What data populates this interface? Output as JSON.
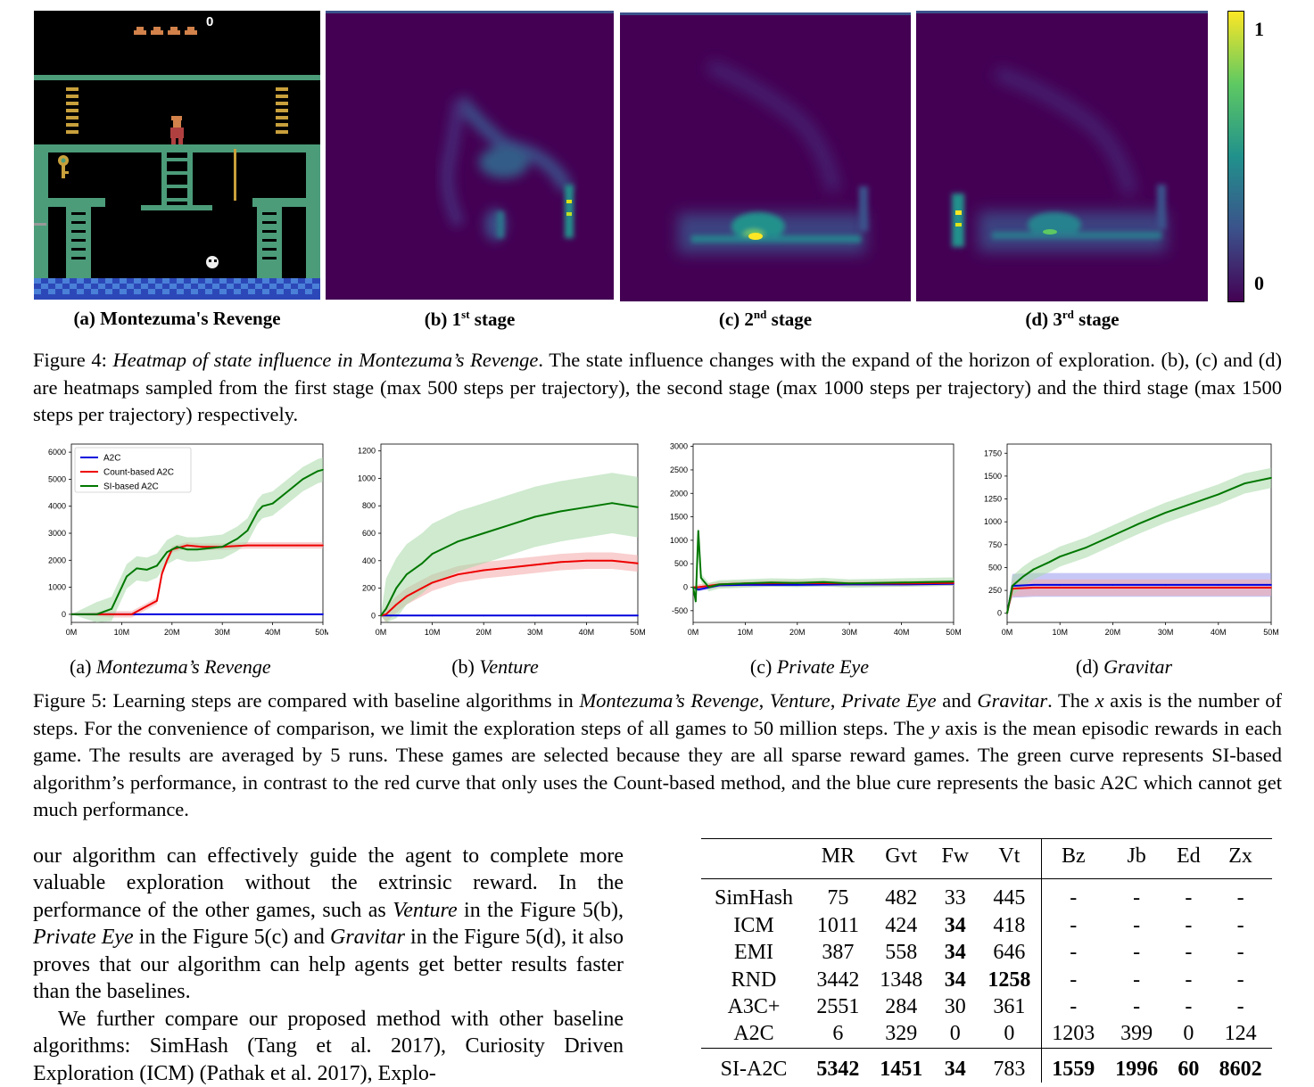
{
  "figure4": {
    "panels": [
      {
        "label": "(a) Montezuma's Revenge"
      },
      {
        "label_prefix": "(b) 1",
        "label_sup": "st",
        "label_suffix": " stage"
      },
      {
        "label_prefix": "(c) 2",
        "label_sup": "nd",
        "label_suffix": " stage"
      },
      {
        "label_prefix": "(d) 3",
        "label_sup": "rd",
        "label_suffix": " stage"
      }
    ],
    "game_score": "0",
    "colorbar": {
      "max_label": "1",
      "min_label": "0",
      "colors": [
        "#440154",
        "#3b528b",
        "#21918c",
        "#5ec962",
        "#fde725"
      ]
    },
    "caption": {
      "prefix": "Figure 4: ",
      "italic": "Heatmap of state influence in Montezuma’s Revenge",
      "rest": ". The state influence changes with the expand of the horizon of exploration. (b), (c) and (d) are heatmaps sampled from the first stage (max 500 steps per trajectory), the second stage (max 1000 steps per trajectory) and the third stage (max 1500 steps per trajectory) respectively."
    }
  },
  "chart_data": [
    {
      "type": "line",
      "title": "",
      "x_ticks": [
        "0M",
        "10M",
        "20M",
        "30M",
        "40M",
        "50M"
      ],
      "xlim": [
        0,
        50
      ],
      "ylim": [
        -300,
        6300
      ],
      "y_ticks": [
        0,
        1000,
        2000,
        3000,
        4000,
        5000,
        6000
      ],
      "legend": {
        "placement": "top-left",
        "entries": [
          "A2C",
          "Count-based A2C",
          "SI-based A2C"
        ]
      },
      "series": [
        {
          "name": "A2C",
          "color": "#0000dd",
          "x": [
            0,
            10,
            20,
            30,
            40,
            50
          ],
          "y": [
            0,
            0,
            0,
            0,
            0,
            0
          ]
        },
        {
          "name": "Count-based A2C",
          "color": "#ee0000",
          "x": [
            0,
            8,
            12,
            14,
            15,
            17,
            18,
            19,
            20,
            23,
            26,
            30,
            35,
            40,
            45,
            50
          ],
          "y": [
            0,
            0,
            0,
            200,
            300,
            500,
            1500,
            2000,
            2400,
            2550,
            2500,
            2500,
            2550,
            2550,
            2550,
            2550
          ]
        },
        {
          "name": "SI-based A2C",
          "color": "#007700",
          "x": [
            0,
            5,
            8,
            10,
            11,
            13,
            15,
            17,
            19,
            21,
            23,
            25,
            30,
            33,
            35,
            37,
            38,
            40,
            42,
            44,
            46,
            48,
            49,
            50
          ],
          "y": [
            0,
            0,
            200,
            1000,
            1400,
            1700,
            1650,
            1800,
            2300,
            2500,
            2400,
            2400,
            2500,
            2800,
            3100,
            3800,
            4000,
            4100,
            4400,
            4700,
            5000,
            5200,
            5300,
            5350
          ]
        }
      ]
    },
    {
      "type": "line",
      "title": "",
      "x_ticks": [
        "0M",
        "10M",
        "20M",
        "30M",
        "40M",
        "50M"
      ],
      "xlim": [
        0,
        50
      ],
      "ylim": [
        -50,
        1250
      ],
      "y_ticks": [
        0,
        200,
        400,
        600,
        800,
        1000,
        1200
      ],
      "series": [
        {
          "name": "A2C",
          "color": "#0000dd",
          "x": [
            0,
            10,
            20,
            30,
            40,
            50
          ],
          "y": [
            0,
            0,
            0,
            0,
            0,
            0
          ]
        },
        {
          "name": "Count-based A2C",
          "color": "#ee0000",
          "x": [
            0,
            1,
            3,
            5,
            8,
            10,
            15,
            20,
            25,
            30,
            35,
            40,
            45,
            50
          ],
          "y": [
            0,
            10,
            80,
            140,
            200,
            240,
            300,
            330,
            350,
            370,
            390,
            400,
            400,
            380
          ]
        },
        {
          "name": "SI-based A2C",
          "color": "#007700",
          "x": [
            0,
            1,
            3,
            5,
            8,
            10,
            15,
            20,
            25,
            30,
            35,
            40,
            45,
            50
          ],
          "y": [
            0,
            50,
            200,
            300,
            380,
            450,
            540,
            600,
            660,
            720,
            760,
            790,
            820,
            790
          ]
        }
      ]
    },
    {
      "type": "line",
      "title": "",
      "x_ticks": [
        "0M",
        "10M",
        "20M",
        "30M",
        "40M",
        "50M"
      ],
      "xlim": [
        0,
        50
      ],
      "ylim": [
        -750,
        3050
      ],
      "y_ticks": [
        -500,
        0,
        500,
        1000,
        1500,
        2000,
        2500,
        3000
      ],
      "series": [
        {
          "name": "A2C",
          "color": "#0000dd",
          "x": [
            0,
            1,
            5,
            10,
            20,
            30,
            40,
            50
          ],
          "y": [
            0,
            -50,
            40,
            50,
            50,
            60,
            60,
            70
          ]
        },
        {
          "name": "Count-based A2C",
          "color": "#ee0000",
          "x": [
            0,
            1,
            5,
            10,
            20,
            30,
            40,
            50
          ],
          "y": [
            0,
            0,
            60,
            80,
            90,
            80,
            80,
            90
          ]
        },
        {
          "name": "SI-based A2C",
          "color": "#007700",
          "x": [
            0,
            0.5,
            1,
            1.5,
            3,
            5,
            10,
            15,
            20,
            25,
            30,
            35,
            40,
            45,
            50
          ],
          "y": [
            0,
            -300,
            1200,
            200,
            0,
            60,
            80,
            100,
            90,
            110,
            80,
            90,
            100,
            110,
            120
          ]
        }
      ]
    },
    {
      "type": "line",
      "title": "",
      "x_ticks": [
        "0M",
        "10M",
        "20M",
        "30M",
        "40M",
        "50M"
      ],
      "xlim": [
        0,
        50
      ],
      "ylim": [
        -100,
        1850
      ],
      "y_ticks": [
        0,
        250,
        500,
        750,
        1000,
        1250,
        1500,
        1750
      ],
      "series": [
        {
          "name": "A2C",
          "color": "#0000dd",
          "x": [
            0,
            1,
            5,
            10,
            20,
            30,
            40,
            50
          ],
          "y": [
            0,
            300,
            310,
            310,
            310,
            310,
            310,
            310
          ]
        },
        {
          "name": "Count-based A2C",
          "color": "#ee0000",
          "x": [
            0,
            1,
            5,
            10,
            20,
            30,
            40,
            50
          ],
          "y": [
            0,
            270,
            280,
            280,
            280,
            280,
            280,
            280
          ]
        },
        {
          "name": "SI-based A2C",
          "color": "#007700",
          "x": [
            0,
            1,
            3,
            5,
            8,
            10,
            15,
            20,
            25,
            30,
            35,
            40,
            45,
            50
          ],
          "y": [
            0,
            300,
            400,
            480,
            560,
            620,
            720,
            850,
            980,
            1100,
            1200,
            1300,
            1420,
            1480
          ]
        }
      ]
    }
  ],
  "figure5": {
    "panels": [
      {
        "prefix": "(a) ",
        "italic": "Montezuma’s Revenge"
      },
      {
        "prefix": "(b) ",
        "italic": "Venture"
      },
      {
        "prefix": "(c) ",
        "italic": "Private Eye"
      },
      {
        "prefix": "(d) ",
        "italic": "Gravitar"
      }
    ],
    "caption": {
      "p1": "Figure 5: Learning steps are compared with baseline algorithms in ",
      "g1": "Montezuma’s Revenge",
      "s1": ", ",
      "g2": "Venture",
      "s2": ", ",
      "g3": "Private Eye",
      "s3": " and ",
      "g4": "Gravitar",
      "p2": ". The ",
      "xvar": "x",
      "p3": " axis is the number of steps. For the convenience of comparison, we limit the exploration steps of all games to 50 million steps. The ",
      "yvar": "y",
      "p4": " axis is the mean episodic rewards in each game. The results are averaged by 5 runs. These games are selected because they are all sparse reward games. The green curve represents SI-based algorithm’s performance, in contrast to the red curve that only uses the Count-based method, and the blue cure represents the basic A2C which cannot get much performance."
    }
  },
  "body_text": {
    "para1_a": "our algorithm can effectively guide the agent to complete more valuable exploration without the extrinsic reward. In the performance of the other games, such as ",
    "para1_venture": "Venture",
    "para1_b": " in the Figure 5(b), ",
    "para1_pe": "Private Eye",
    "para1_c": " in the Figure 5(c) and ",
    "para1_grav": "Gravitar",
    "para1_d": " in the Figure 5(d), it also proves that our algorithm can help agents get better results faster than the baselines.",
    "para2": "We further compare our proposed method with other baseline algorithms: SimHash (Tang et al. 2017), Curiosity Driven Exploration (ICM) (Pathak et al. 2017), Explo-"
  },
  "table": {
    "headers": [
      "",
      "MR",
      "Gvt",
      "Fw",
      "Vt",
      "Bz",
      "Jb",
      "Ed",
      "Zx"
    ],
    "rows": [
      {
        "name": "SimHash",
        "cells": [
          "75",
          "482",
          "33",
          "445",
          "-",
          "-",
          "-",
          "-"
        ]
      },
      {
        "name": "ICM",
        "cells": [
          "1011",
          "424",
          "34",
          "418",
          "-",
          "-",
          "-",
          "-"
        ]
      },
      {
        "name": "EMI",
        "cells": [
          "387",
          "558",
          "34",
          "646",
          "-",
          "-",
          "-",
          "-"
        ]
      },
      {
        "name": "RND",
        "cells": [
          "3442",
          "1348",
          "34",
          "1258",
          "-",
          "-",
          "-",
          "-"
        ]
      },
      {
        "name": "A3C+",
        "cells": [
          "2551",
          "284",
          "30",
          "361",
          "-",
          "-",
          "-",
          "-"
        ]
      },
      {
        "name": "A2C",
        "cells": [
          "6",
          "329",
          "0",
          "0",
          "1203",
          "399",
          "0",
          "124"
        ]
      }
    ],
    "si_row": {
      "name": "SI-A2C",
      "cells": [
        "5342",
        "1451",
        "34",
        "783",
        "1559",
        "1996",
        "60",
        "8602"
      ]
    }
  }
}
